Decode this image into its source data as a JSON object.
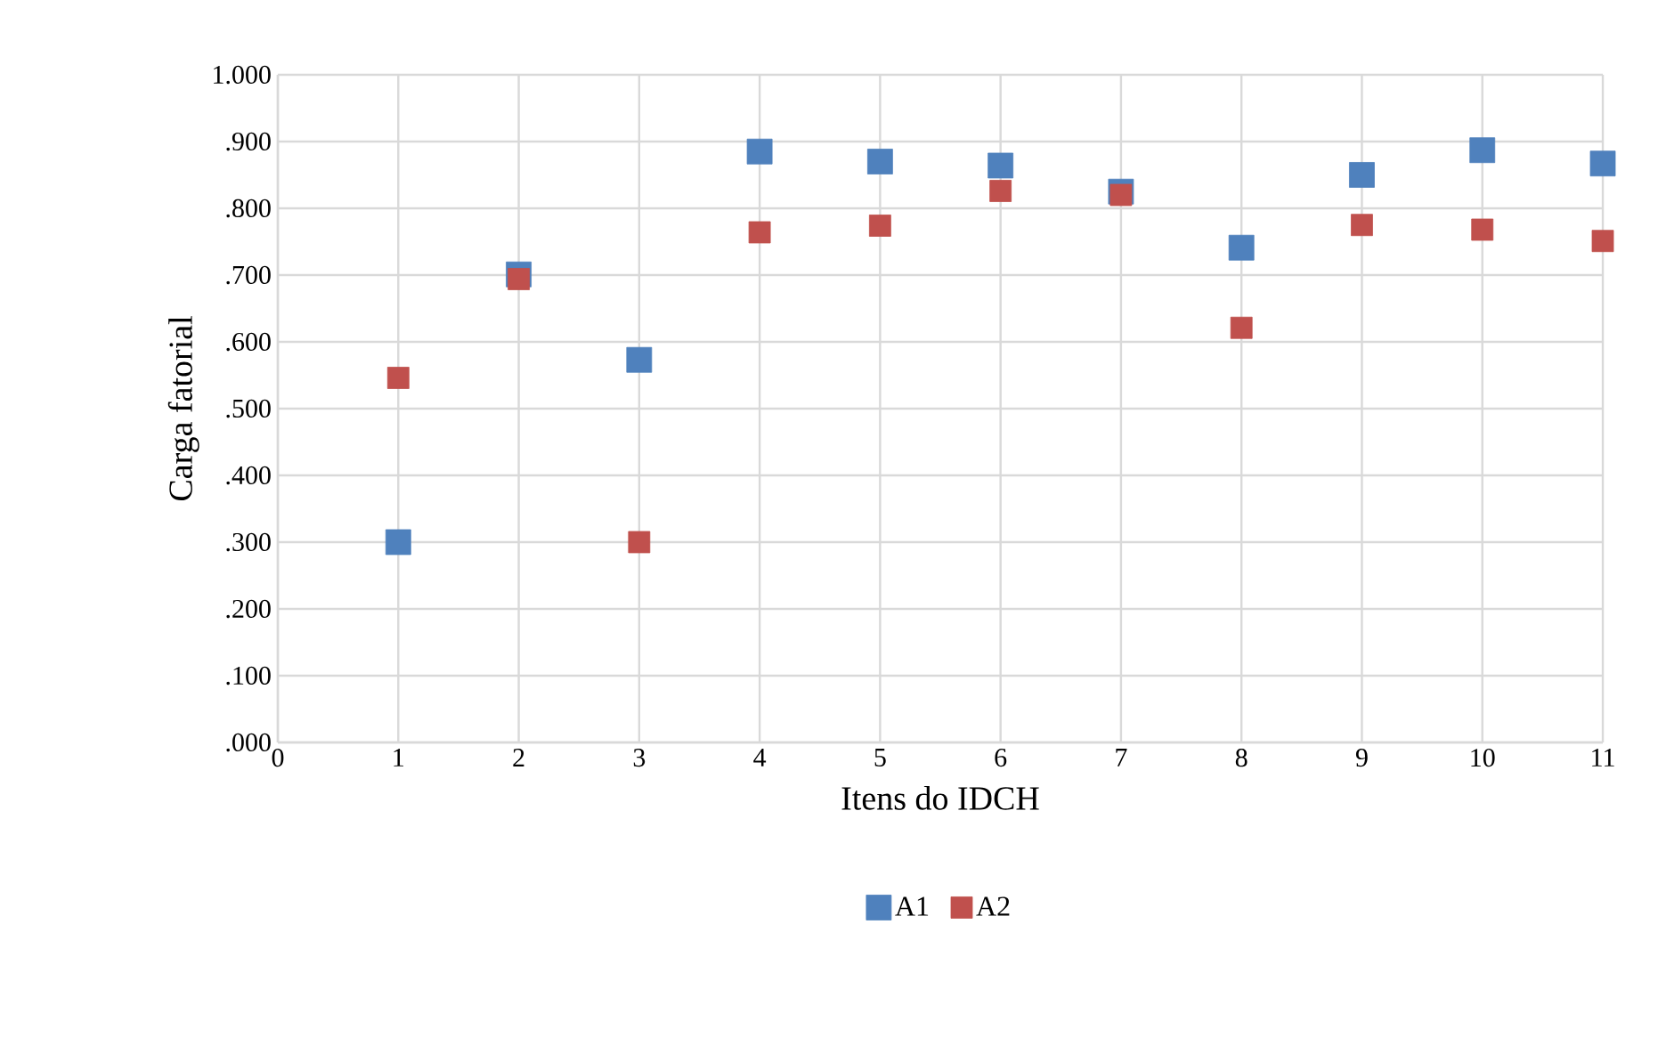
{
  "chart_data": {
    "type": "scatter",
    "xlabel": "Itens do IDCH",
    "ylabel": "Carga fatorial",
    "x": [
      1,
      2,
      3,
      4,
      5,
      6,
      7,
      8,
      9,
      10,
      11
    ],
    "series": [
      {
        "name": "A1",
        "color": "#4f81bd",
        "values": [
          0.3,
          0.701,
          0.573,
          0.885,
          0.87,
          0.864,
          0.825,
          0.741,
          0.85,
          0.887,
          0.867
        ]
      },
      {
        "name": "A2",
        "color": "#c0504d",
        "values": [
          0.546,
          0.694,
          0.3,
          0.764,
          0.774,
          0.826,
          0.82,
          0.621,
          0.775,
          0.768,
          0.751
        ]
      }
    ],
    "xlim": [
      0,
      11
    ],
    "xticks": [
      0,
      1,
      2,
      3,
      4,
      5,
      6,
      7,
      8,
      9,
      10,
      11
    ],
    "ylim": [
      0,
      1
    ],
    "yticks": [
      {
        "value": 0,
        "label": ".000"
      },
      {
        "value": 0.1,
        "label": ".100"
      },
      {
        "value": 0.2,
        "label": ".200"
      },
      {
        "value": 0.3,
        "label": ".300"
      },
      {
        "value": 0.4,
        "label": ".400"
      },
      {
        "value": 0.5,
        "label": ".500"
      },
      {
        "value": 0.6,
        "label": ".600"
      },
      {
        "value": 0.7,
        "label": ".700"
      },
      {
        "value": 0.8,
        "label": ".800"
      },
      {
        "value": 0.9,
        "label": ".900"
      },
      {
        "value": 1,
        "label": "1.000"
      }
    ],
    "grid": true,
    "legend": "bottom",
    "marker": "square"
  }
}
